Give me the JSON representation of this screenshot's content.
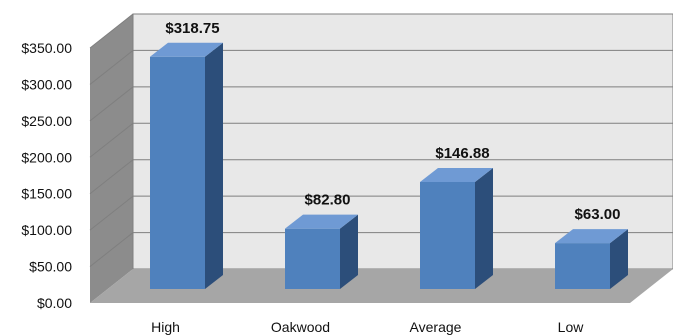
{
  "chart_data": {
    "type": "bar",
    "style": "3d-column",
    "categories": [
      "High",
      "Oakwood",
      "Average",
      "Low"
    ],
    "values": [
      318.75,
      82.8,
      146.88,
      63.0
    ],
    "data_labels": [
      "$318.75",
      "$82.80",
      "$146.88",
      "$63.00"
    ],
    "y_ticks": [
      "$0.00",
      "$50.00",
      "$100.00",
      "$150.00",
      "$200.00",
      "$250.00",
      "$300.00",
      "$350.00"
    ],
    "ylim": [
      0,
      350
    ],
    "grid": true,
    "legend": "none",
    "colors": {
      "bar_front": "#4f81bd",
      "bar_side": "#2c4e7a",
      "bar_top": "#6f9ad4",
      "wall": "#e8e8e8",
      "floor": "#a6a6a6",
      "side_wall": "#8c8c8c",
      "grid": "#7f7f7f"
    }
  }
}
